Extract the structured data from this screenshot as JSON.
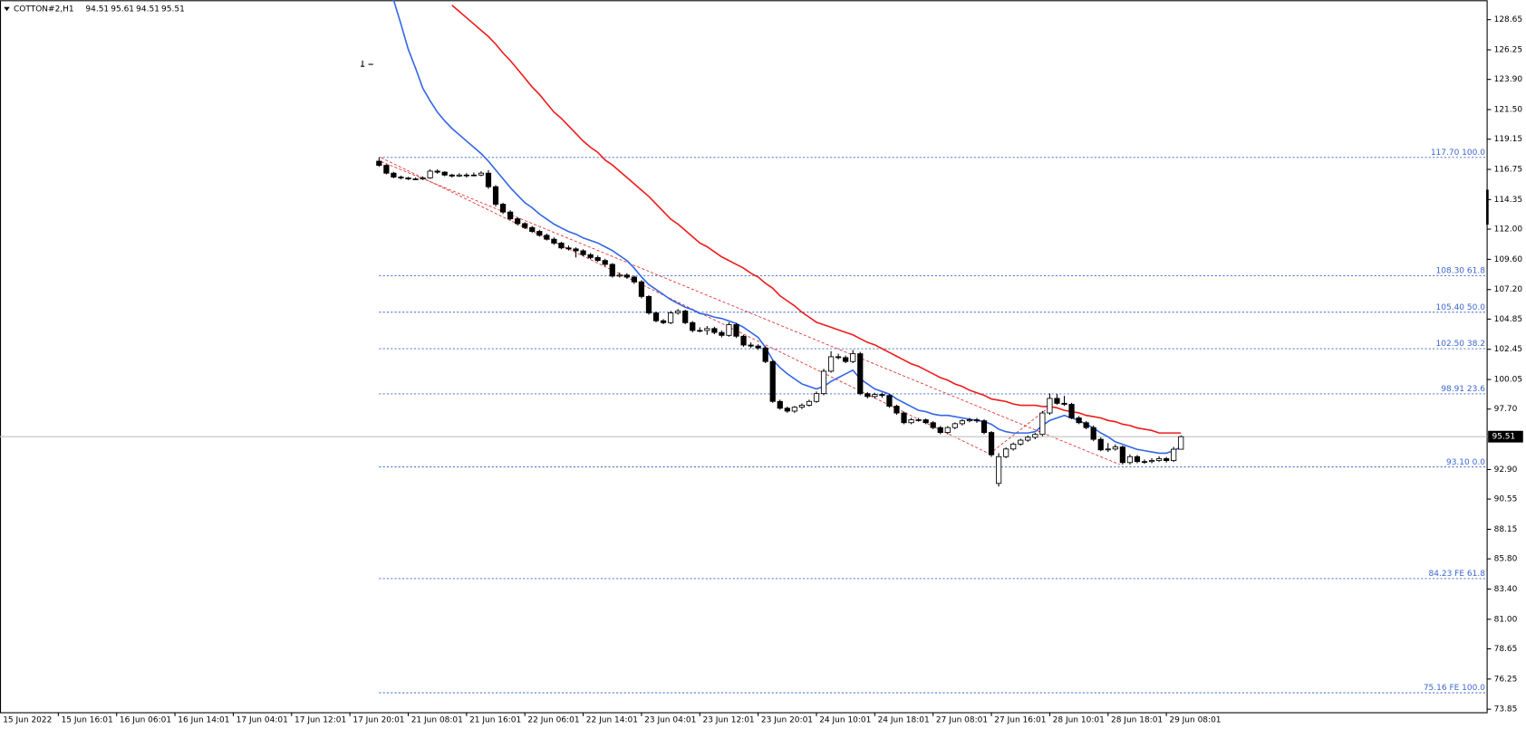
{
  "chart_data": {
    "type": "candlestick",
    "symbol": "COTTON#2,H1",
    "up_color": "#ffffff",
    "down_color": "#000000",
    "edge_color": "#000000",
    "price_line_color": "#c0c0c0",
    "ylim": [
      73.61,
      130.19
    ],
    "yticks": [
      128.65,
      126.25,
      {
        "value": 123.9,
        "label": "123.90"
      },
      {
        "value": 121.5,
        "label": "121.50"
      },
      119.15,
      116.75,
      114.35,
      {
        "value": 112,
        "label": "112.00"
      },
      {
        "value": 109.6,
        "label": "109.60"
      },
      {
        "value": 107.2,
        "label": "107.20"
      },
      104.85,
      102.45,
      100.05,
      {
        "value": 97.7,
        "label": "97.70"
      },
      {
        "value": 92.9,
        "label": "92.90"
      },
      90.55,
      88.15,
      {
        "value": 85.8,
        "label": "85.80"
      },
      {
        "value": 83.4,
        "label": "83.40"
      },
      {
        "value": 81,
        "label": "81.00"
      },
      78.65,
      76.25,
      73.85
    ],
    "x_labels": [
      "15 Jun 2022",
      "15 Jun 16:01",
      "16 Jun 06:01",
      "16 Jun 14:01",
      "17 Jun 04:01",
      "17 Jun 12:01",
      "17 Jun 20:01",
      "21 Jun 08:01",
      "21 Jun 16:01",
      "22 Jun 06:01",
      "22 Jun 14:01",
      "23 Jun 04:01",
      "23 Jun 12:01",
      "23 Jun 20:01",
      "24 Jun 10:01",
      "24 Jun 18:01",
      "27 Jun 08:01",
      "27 Jun 16:01",
      "28 Jun 10:01",
      "28 Jun 18:01",
      "29 Jun 08:01"
    ],
    "fib_color": "#3a66d0",
    "fib_levels": [
      {
        "value": 117.7,
        "label": "117.70 100.0"
      },
      {
        "value": 108.3,
        "label": "108.30 61.8"
      },
      {
        "value": 105.4,
        "label": "105.40 50.0"
      },
      {
        "value": 102.5,
        "label": "102.50 38.2"
      },
      {
        "value": 98.91,
        "label": "98.91 23.6"
      },
      {
        "value": 93.1,
        "label": "93.10 0.0"
      },
      {
        "value": 84.23,
        "label": "84.23 FE 61.8"
      },
      {
        "value": 75.16,
        "label": "75.16 FE 100.0"
      }
    ],
    "ohlc": [
      [
        117.4,
        117.7,
        116.95,
        117.07
      ],
      [
        117.07,
        117.15,
        116.35,
        116.45
      ],
      [
        116.45,
        116.55,
        116.05,
        116.14
      ],
      [
        116.14,
        116.25,
        115.95,
        116.07
      ],
      [
        116.07,
        116.15,
        115.9,
        115.99
      ],
      [
        115.99,
        116.1,
        115.9,
        115.99
      ],
      [
        115.99,
        116.2,
        115.9,
        116.07
      ],
      [
        116.07,
        116.75,
        116.0,
        116.61
      ],
      [
        116.61,
        116.75,
        116.4,
        116.53
      ],
      [
        116.53,
        116.6,
        116.2,
        116.3
      ],
      [
        116.3,
        116.4,
        116.1,
        116.22
      ],
      [
        116.22,
        116.45,
        116.15,
        116.3
      ],
      [
        116.3,
        116.45,
        116.1,
        116.3
      ],
      [
        116.3,
        116.5,
        116.2,
        116.3
      ],
      [
        116.3,
        116.6,
        116.2,
        116.45
      ],
      [
        116.45,
        116.7,
        115.2,
        115.37
      ],
      [
        115.37,
        115.5,
        113.8,
        113.98
      ],
      [
        113.98,
        114.1,
        113.2,
        113.36
      ],
      [
        113.36,
        113.5,
        112.7,
        112.82
      ],
      [
        112.82,
        112.95,
        112.3,
        112.44
      ],
      [
        112.44,
        112.55,
        112.0,
        112.13
      ],
      [
        112.13,
        112.25,
        111.7,
        111.82
      ],
      [
        111.82,
        111.95,
        111.4,
        111.51
      ],
      [
        111.51,
        111.65,
        111.1,
        111.2
      ],
      [
        111.2,
        111.35,
        110.75,
        110.89
      ],
      [
        110.89,
        111.0,
        110.4,
        110.51
      ],
      [
        110.51,
        110.7,
        110.3,
        110.43
      ],
      [
        110.43,
        110.55,
        109.75,
        110.28
      ],
      [
        110.28,
        110.4,
        109.85,
        109.97
      ],
      [
        109.97,
        110.1,
        109.6,
        109.74
      ],
      [
        109.74,
        109.9,
        109.4,
        109.51
      ],
      [
        109.51,
        109.65,
        109.05,
        109.2
      ],
      [
        109.2,
        109.3,
        108.15,
        108.27
      ],
      [
        108.27,
        108.55,
        108.15,
        108.35
      ],
      [
        108.35,
        108.5,
        108.05,
        108.19
      ],
      [
        108.19,
        108.3,
        107.65,
        107.81
      ],
      [
        107.81,
        107.95,
        106.5,
        106.65
      ],
      [
        106.65,
        106.75,
        105.2,
        105.34
      ],
      [
        105.34,
        105.45,
        104.6,
        104.72
      ],
      [
        104.72,
        104.85,
        104.45,
        104.57
      ],
      [
        104.57,
        105.5,
        104.45,
        105.34
      ],
      [
        105.34,
        105.65,
        105.2,
        105.49
      ],
      [
        105.49,
        105.6,
        104.45,
        104.57
      ],
      [
        104.57,
        104.7,
        103.8,
        103.95
      ],
      [
        103.95,
        104.2,
        103.8,
        103.95
      ],
      [
        103.95,
        104.3,
        103.6,
        104.1
      ],
      [
        104.1,
        104.25,
        103.65,
        103.79
      ],
      [
        103.79,
        103.95,
        103.4,
        103.56
      ],
      [
        103.56,
        104.6,
        103.45,
        104.41
      ],
      [
        104.41,
        104.55,
        103.35,
        103.49
      ],
      [
        103.49,
        103.6,
        102.65,
        102.79
      ],
      [
        102.79,
        103.0,
        102.55,
        102.71
      ],
      [
        102.71,
        102.85,
        102.4,
        102.56
      ],
      [
        102.56,
        102.7,
        101.35,
        101.48
      ],
      [
        101.48,
        101.6,
        98.2,
        98.31
      ],
      [
        98.31,
        98.45,
        97.65,
        97.77
      ],
      [
        97.77,
        97.9,
        97.4,
        97.54
      ],
      [
        97.54,
        97.95,
        97.4,
        97.85
      ],
      [
        97.85,
        98.15,
        97.7,
        98.01
      ],
      [
        98.01,
        98.45,
        97.9,
        98.31
      ],
      [
        98.31,
        99.1,
        98.2,
        98.93
      ],
      [
        98.93,
        100.9,
        98.8,
        100.71
      ],
      [
        100.71,
        102.3,
        100.6,
        101.86
      ],
      [
        101.86,
        102.1,
        101.65,
        101.79
      ],
      [
        101.79,
        101.95,
        101.35,
        101.48
      ],
      [
        101.48,
        102.4,
        101.35,
        102.1
      ],
      [
        102.1,
        102.25,
        98.8,
        98.93
      ],
      [
        98.93,
        99.05,
        98.55,
        98.7
      ],
      [
        98.7,
        99.0,
        98.55,
        98.86
      ],
      [
        98.86,
        99.0,
        98.6,
        98.78
      ],
      [
        98.78,
        98.9,
        97.8,
        97.93
      ],
      [
        97.93,
        98.05,
        97.25,
        97.39
      ],
      [
        97.39,
        97.5,
        96.5,
        96.62
      ],
      [
        96.62,
        97.0,
        96.5,
        96.85
      ],
      [
        96.85,
        97.0,
        96.7,
        96.85
      ],
      [
        96.85,
        96.95,
        96.5,
        96.62
      ],
      [
        96.62,
        96.75,
        96.1,
        96.23
      ],
      [
        96.23,
        96.35,
        95.7,
        95.84
      ],
      [
        95.84,
        96.35,
        95.7,
        96.23
      ],
      [
        96.23,
        96.65,
        96.1,
        96.54
      ],
      [
        96.54,
        96.9,
        96.4,
        96.77
      ],
      [
        96.77,
        97.0,
        96.65,
        96.85
      ],
      [
        96.85,
        97.0,
        96.6,
        96.77
      ],
      [
        96.77,
        96.9,
        95.7,
        95.84
      ],
      [
        95.84,
        95.95,
        93.9,
        94.07
      ],
      [
        91.8,
        94.2,
        91.55,
        93.92
      ],
      [
        93.92,
        94.65,
        93.8,
        94.53
      ],
      [
        94.53,
        95.05,
        94.4,
        94.92
      ],
      [
        94.92,
        95.35,
        94.8,
        95.23
      ],
      [
        95.23,
        95.6,
        95.1,
        95.46
      ],
      [
        95.46,
        95.8,
        95.3,
        95.69
      ],
      [
        95.69,
        97.55,
        95.55,
        97.39
      ],
      [
        97.39,
        98.95,
        97.25,
        98.55
      ],
      [
        98.55,
        98.9,
        98.05,
        98.16
      ],
      [
        98.16,
        98.75,
        97.95,
        98.08
      ],
      [
        98.08,
        98.2,
        96.9,
        97.0
      ],
      [
        97.0,
        97.15,
        96.5,
        96.62
      ],
      [
        96.62,
        96.75,
        96.1,
        96.23
      ],
      [
        96.23,
        96.4,
        95.15,
        95.3
      ],
      [
        95.3,
        95.45,
        94.35,
        94.46
      ],
      [
        94.46,
        95.0,
        94.3,
        94.53
      ],
      [
        94.53,
        94.9,
        94.4,
        94.69
      ],
      [
        94.69,
        94.8,
        93.3,
        93.45
      ],
      [
        93.45,
        94.1,
        93.3,
        93.92
      ],
      [
        93.92,
        94.05,
        93.4,
        93.53
      ],
      [
        93.53,
        93.7,
        93.35,
        93.53
      ],
      [
        93.53,
        93.8,
        93.4,
        93.61
      ],
      [
        93.61,
        93.95,
        93.5,
        93.76
      ],
      [
        93.76,
        93.9,
        93.45,
        93.61
      ],
      [
        93.61,
        94.7,
        93.5,
        94.51
      ],
      [
        94.51,
        95.61,
        94.51,
        95.51
      ]
    ],
    "moving_averages": [
      {
        "color": "#3366e6",
        "values": [
          null,
          null,
          130.2,
          128.3,
          126.3,
          124.8,
          123.2,
          122.2,
          121.3,
          120.6,
          120.0,
          119.5,
          119.0,
          118.5,
          118.0,
          117.4,
          116.7,
          116.0,
          115.3,
          114.7,
          114.1,
          113.7,
          113.2,
          112.8,
          112.4,
          112.1,
          111.8,
          111.6,
          111.3,
          111.1,
          110.9,
          110.6,
          110.3,
          109.9,
          109.5,
          108.9,
          108.2,
          107.6,
          107.2,
          106.8,
          106.4,
          106.1,
          105.8,
          105.6,
          105.3,
          105.2,
          105.0,
          104.9,
          104.7,
          104.5,
          104.2,
          103.8,
          103.4,
          102.6,
          101.6,
          101.0,
          100.5,
          100.1,
          99.7,
          99.5,
          99.3,
          99.5,
          99.9,
          100.2,
          100.5,
          100.8,
          100.1,
          99.7,
          99.3,
          99.1,
          98.9,
          98.5,
          98.2,
          97.9,
          97.6,
          97.5,
          97.3,
          97.2,
          97.2,
          97.1,
          97.0,
          96.9,
          96.8,
          96.7,
          96.5,
          96.1,
          95.9,
          95.8,
          95.8,
          95.8,
          95.9,
          96.4,
          96.8,
          97.0,
          97.2,
          97.0,
          96.8,
          96.5,
          96.2,
          95.8,
          95.5,
          95.1,
          94.9,
          94.7,
          94.5,
          94.4,
          94.3,
          94.2,
          94.2,
          94.4,
          94.7
        ]
      },
      {
        "color": "#ee1c1c",
        "values": [
          null,
          null,
          null,
          null,
          null,
          null,
          null,
          null,
          null,
          null,
          129.8,
          129.3,
          128.8,
          128.3,
          127.8,
          127.3,
          126.7,
          126.0,
          125.4,
          124.7,
          124.0,
          123.3,
          122.7,
          122.0,
          121.3,
          120.8,
          120.2,
          119.6,
          119.0,
          118.5,
          118.1,
          117.5,
          117.1,
          116.6,
          116.1,
          115.6,
          115.1,
          114.6,
          114.0,
          113.4,
          112.8,
          112.4,
          111.9,
          111.4,
          110.9,
          110.6,
          110.2,
          109.8,
          109.5,
          109.2,
          108.9,
          108.5,
          108.2,
          107.7,
          107.3,
          106.7,
          106.3,
          105.9,
          105.4,
          105.0,
          104.6,
          104.4,
          104.2,
          104.0,
          103.8,
          103.6,
          103.3,
          103.0,
          102.8,
          102.5,
          102.2,
          101.9,
          101.6,
          101.3,
          101.1,
          100.8,
          100.5,
          100.2,
          100.0,
          99.7,
          99.5,
          99.2,
          99.0,
          98.8,
          98.5,
          98.4,
          98.3,
          98.1,
          98.0,
          98.0,
          98.0,
          97.9,
          97.9,
          97.8,
          97.6,
          97.5,
          97.4,
          97.2,
          97.1,
          97.0,
          96.8,
          96.7,
          96.5,
          96.4,
          96.2,
          96.1,
          96.0,
          95.8,
          95.8,
          95.8,
          95.8
        ]
      }
    ]
  }
}
